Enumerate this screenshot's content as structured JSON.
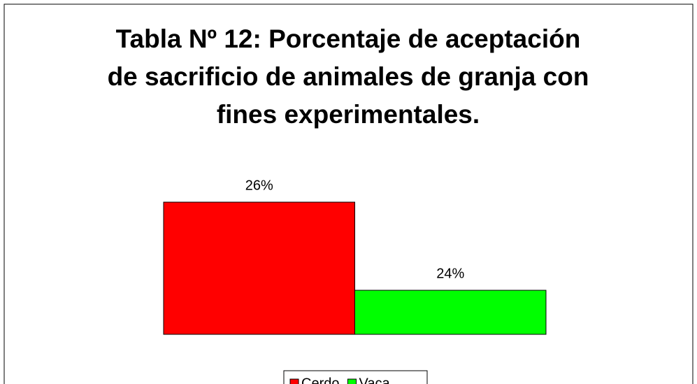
{
  "chart_data": {
    "type": "bar",
    "title": [
      "Tabla Nº 12: Porcentaje de aceptación",
      "de sacrificio de animales de granja con",
      "fines experimentales."
    ],
    "categories": [
      null
    ],
    "series": [
      {
        "name": "Cerdo",
        "color": "#ff0000",
        "values": [
          26
        ],
        "value_labels": [
          "26%"
        ]
      },
      {
        "name": "Vaca",
        "color": "#00ff00",
        "values": [
          24
        ],
        "value_labels": [
          "24%"
        ]
      }
    ],
    "ylim": [
      23,
      27
    ],
    "legend": "bottom"
  }
}
